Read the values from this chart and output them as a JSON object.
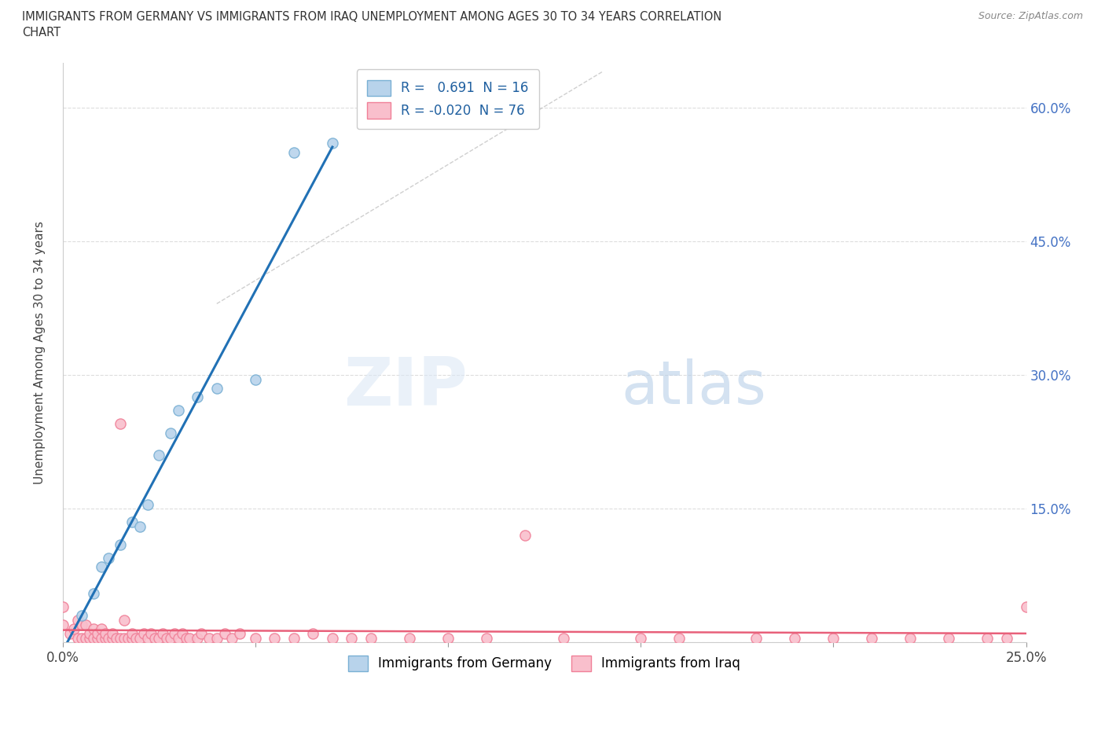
{
  "title_line1": "IMMIGRANTS FROM GERMANY VS IMMIGRANTS FROM IRAQ UNEMPLOYMENT AMONG AGES 30 TO 34 YEARS CORRELATION",
  "title_line2": "CHART",
  "source": "Source: ZipAtlas.com",
  "ylabel": "Unemployment Among Ages 30 to 34 years",
  "xlim": [
    0.0,
    0.25
  ],
  "ylim": [
    0.0,
    0.65
  ],
  "xticks": [
    0.0,
    0.05,
    0.1,
    0.15,
    0.2,
    0.25
  ],
  "xtick_labels": [
    "0.0%",
    "",
    "",
    "",
    "",
    "25.0%"
  ],
  "yticks": [
    0.0,
    0.15,
    0.3,
    0.45,
    0.6
  ],
  "ytick_right_labels": [
    "",
    "15.0%",
    "30.0%",
    "45.0%",
    "60.0%"
  ],
  "germany_color": "#b8d3eb",
  "iraq_color": "#f9bfcc",
  "germany_edge": "#7ab0d4",
  "iraq_edge": "#f08098",
  "germany_R": 0.691,
  "germany_N": 16,
  "iraq_R": -0.02,
  "iraq_N": 76,
  "trendline_germany_color": "#2171b5",
  "trendline_iraq_color": "#e8607a",
  "diagonal_color": "#bbbbbb",
  "watermark_zip": "ZIP",
  "watermark_atlas": "atlas",
  "germany_x": [
    0.005,
    0.008,
    0.01,
    0.012,
    0.015,
    0.018,
    0.02,
    0.022,
    0.025,
    0.028,
    0.03,
    0.035,
    0.04,
    0.05,
    0.06,
    0.07
  ],
  "germany_y": [
    0.03,
    0.055,
    0.085,
    0.095,
    0.11,
    0.135,
    0.13,
    0.155,
    0.21,
    0.235,
    0.26,
    0.275,
    0.285,
    0.295,
    0.55,
    0.56
  ],
  "iraq_x": [
    0.0,
    0.0,
    0.002,
    0.003,
    0.004,
    0.004,
    0.005,
    0.005,
    0.006,
    0.006,
    0.007,
    0.007,
    0.008,
    0.008,
    0.009,
    0.009,
    0.01,
    0.01,
    0.011,
    0.011,
    0.012,
    0.013,
    0.013,
    0.014,
    0.015,
    0.015,
    0.016,
    0.016,
    0.017,
    0.018,
    0.018,
    0.019,
    0.02,
    0.021,
    0.022,
    0.023,
    0.024,
    0.025,
    0.026,
    0.027,
    0.028,
    0.029,
    0.03,
    0.031,
    0.032,
    0.033,
    0.035,
    0.036,
    0.038,
    0.04,
    0.042,
    0.044,
    0.046,
    0.05,
    0.055,
    0.06,
    0.065,
    0.07,
    0.075,
    0.08,
    0.09,
    0.1,
    0.11,
    0.12,
    0.13,
    0.15,
    0.16,
    0.18,
    0.19,
    0.2,
    0.21,
    0.22,
    0.23,
    0.24,
    0.245,
    0.25
  ],
  "iraq_y": [
    0.02,
    0.04,
    0.01,
    0.015,
    0.005,
    0.025,
    0.005,
    0.02,
    0.005,
    0.02,
    0.005,
    0.01,
    0.005,
    0.015,
    0.005,
    0.01,
    0.005,
    0.015,
    0.005,
    0.01,
    0.005,
    0.005,
    0.01,
    0.005,
    0.245,
    0.005,
    0.005,
    0.025,
    0.005,
    0.005,
    0.01,
    0.005,
    0.005,
    0.01,
    0.005,
    0.01,
    0.005,
    0.005,
    0.01,
    0.005,
    0.005,
    0.01,
    0.005,
    0.01,
    0.005,
    0.005,
    0.005,
    0.01,
    0.005,
    0.005,
    0.01,
    0.005,
    0.01,
    0.005,
    0.005,
    0.005,
    0.01,
    0.005,
    0.005,
    0.005,
    0.005,
    0.005,
    0.005,
    0.12,
    0.005,
    0.005,
    0.005,
    0.005,
    0.005,
    0.005,
    0.005,
    0.005,
    0.005,
    0.005,
    0.005,
    0.04
  ],
  "marker_size": 90
}
